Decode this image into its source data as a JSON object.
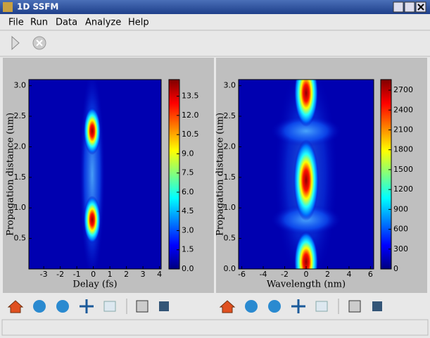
{
  "window": {
    "title": "1D SSFM"
  },
  "menu": [
    "File",
    "Run",
    "Data",
    "Analyze",
    "Help"
  ],
  "plots": [
    {
      "type": "heatmap",
      "xlabel": "Delay (fs)",
      "ylabel": "Propagation distance (um)",
      "xlim": [
        -3.9,
        4.1
      ],
      "xticks": [
        -3,
        -2,
        -1,
        0,
        1,
        2,
        3,
        4
      ],
      "ylim": [
        0,
        3.1
      ],
      "yticks": [
        0.5,
        {
          "value": 1,
          "label": "1.0"
        },
        1.5,
        {
          "value": 2,
          "label": "2.0"
        },
        2.5,
        {
          "value": 3,
          "label": "3.0"
        }
      ],
      "clim": [
        0,
        14.8
      ],
      "cticks": [
        {
          "value": 0,
          "label": "0.0"
        },
        1.5,
        {
          "value": 3,
          "label": "3.0"
        },
        4.5,
        {
          "value": 6,
          "label": "6.0"
        },
        7.5,
        {
          "value": 9,
          "label": "9.0"
        },
        10.5,
        {
          "value": 12,
          "label": "12.0"
        },
        13.5
      ]
    },
    {
      "type": "heatmap",
      "xlabel": "Wavelength (nm)",
      "ylabel": "Propagation distance (um)",
      "xlim": [
        -6.3,
        6.3
      ],
      "xticks": [
        -6,
        -4,
        -2,
        0,
        2,
        4,
        6
      ],
      "ylim": [
        0,
        3.1
      ],
      "yticks": [
        {
          "value": 0,
          "label": "0.0"
        },
        0.5,
        {
          "value": 1,
          "label": "1.0"
        },
        1.5,
        {
          "value": 2,
          "label": "2.0"
        },
        2.5,
        {
          "value": 3,
          "label": "3.0"
        }
      ],
      "clim": [
        0,
        2860
      ],
      "cticks": [
        0,
        300,
        600,
        900,
        1200,
        1500,
        1800,
        2100,
        2400,
        2700
      ]
    }
  ]
}
